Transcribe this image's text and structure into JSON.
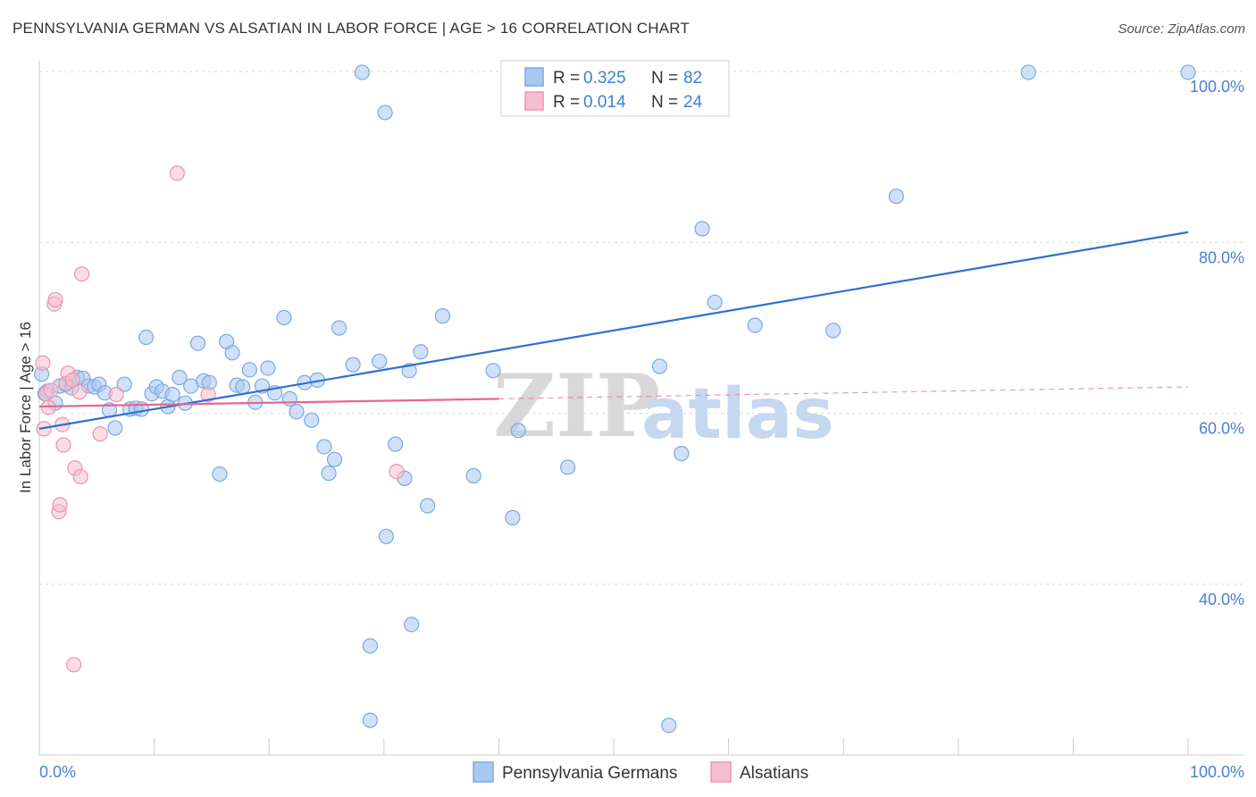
{
  "title": "PENNSYLVANIA GERMAN VS ALSATIAN IN LABOR FORCE | AGE > 16 CORRELATION CHART",
  "source": "Source: ZipAtlas.com",
  "watermark": {
    "zip": "ZIP",
    "atlas": "atlas"
  },
  "colors": {
    "blue_fill": "#a9c8f0",
    "blue_stroke": "#7aa8e2",
    "blue_line": "#2f6fd0",
    "pink_fill": "#f6bfd0",
    "pink_stroke": "#ec93b0",
    "pink_line": "#e8668f",
    "grid": "#d8d8d8",
    "tick_label": "#4a7fd4"
  },
  "legend": {
    "rows": [
      {
        "r_label": "R = ",
        "r_value": "0.325",
        "n_label": "N = ",
        "n_value": "82"
      },
      {
        "r_label": "R = ",
        "r_value": "0.014",
        "n_label": "N = ",
        "n_value": "24"
      }
    ]
  },
  "chart_data": {
    "type": "scatter",
    "title": "PENNSYLVANIA GERMAN VS ALSATIAN IN LABOR FORCE | AGE > 16 CORRELATION CHART",
    "xlabel": "",
    "ylabel": "In Labor Force | Age > 16",
    "xlim": [
      0,
      100
    ],
    "ylim": [
      23,
      103
    ],
    "x_tick_labels": [
      "0.0%",
      "100.0%"
    ],
    "y_ticks": [
      40,
      60,
      80,
      100
    ],
    "y_tick_labels": [
      "40.0%",
      "60.0%",
      "80.0%",
      "100.0%"
    ],
    "grid": true,
    "legend_position": "top-center",
    "series": [
      {
        "name": "Pennsylvania Germans",
        "color": "#a9c8f0",
        "trend": {
          "x": [
            0,
            100
          ],
          "y": [
            58.2,
            81.2
          ],
          "style": "solid"
        },
        "points": [
          [
            0.2,
            64.6
          ],
          [
            0.7,
            62.6
          ],
          [
            1.4,
            61.2
          ],
          [
            1.8,
            63.2
          ],
          [
            2.3,
            63.4
          ],
          [
            2.8,
            63.0
          ],
          [
            3.3,
            64.2
          ],
          [
            3.8,
            64.1
          ],
          [
            4.3,
            63.2
          ],
          [
            4.8,
            63.1
          ],
          [
            5.2,
            63.4
          ],
          [
            5.7,
            62.4
          ],
          [
            6.1,
            60.4
          ],
          [
            6.6,
            58.3
          ],
          [
            7.4,
            63.4
          ],
          [
            7.9,
            60.5
          ],
          [
            8.4,
            60.6
          ],
          [
            8.9,
            60.5
          ],
          [
            9.3,
            68.9
          ],
          [
            9.8,
            62.3
          ],
          [
            10.2,
            63.1
          ],
          [
            10.7,
            62.6
          ],
          [
            11.2,
            60.8
          ],
          [
            11.6,
            62.2
          ],
          [
            12.2,
            64.2
          ],
          [
            12.7,
            61.2
          ],
          [
            13.2,
            63.2
          ],
          [
            13.8,
            68.2
          ],
          [
            14.3,
            63.8
          ],
          [
            14.8,
            63.6
          ],
          [
            15.7,
            52.9
          ],
          [
            16.3,
            68.4
          ],
          [
            16.8,
            67.1
          ],
          [
            17.2,
            63.3
          ],
          [
            17.7,
            63.1
          ],
          [
            18.3,
            65.1
          ],
          [
            18.8,
            61.3
          ],
          [
            19.4,
            63.2
          ],
          [
            19.9,
            65.3
          ],
          [
            20.5,
            62.4
          ],
          [
            21.3,
            71.2
          ],
          [
            21.8,
            61.7
          ],
          [
            22.4,
            60.2
          ],
          [
            23.1,
            63.6
          ],
          [
            23.7,
            59.2
          ],
          [
            24.2,
            63.9
          ],
          [
            24.8,
            56.1
          ],
          [
            25.2,
            53.0
          ],
          [
            25.7,
            54.6
          ],
          [
            26.1,
            70.0
          ],
          [
            27.3,
            65.7
          ],
          [
            28.1,
            99.9
          ],
          [
            28.8,
            32.8
          ],
          [
            28.8,
            24.1
          ],
          [
            29.6,
            66.1
          ],
          [
            30.1,
            95.2
          ],
          [
            30.2,
            45.6
          ],
          [
            31.0,
            56.4
          ],
          [
            31.8,
            52.4
          ],
          [
            32.2,
            65.0
          ],
          [
            32.4,
            35.3
          ],
          [
            33.2,
            67.2
          ],
          [
            33.8,
            49.2
          ],
          [
            35.1,
            71.4
          ],
          [
            37.8,
            52.7
          ],
          [
            39.5,
            65.0
          ],
          [
            41.2,
            47.8
          ],
          [
            41.7,
            58.0
          ],
          [
            46.0,
            53.7
          ],
          [
            46.8,
            95.7
          ],
          [
            48.3,
            99.9
          ],
          [
            54.0,
            65.5
          ],
          [
            54.8,
            23.5
          ],
          [
            55.9,
            55.3
          ],
          [
            57.7,
            81.6
          ],
          [
            58.8,
            73.0
          ],
          [
            62.3,
            70.3
          ],
          [
            69.1,
            69.7
          ],
          [
            74.6,
            85.4
          ],
          [
            86.1,
            99.9
          ],
          [
            100.0,
            99.9
          ],
          [
            0.5,
            62.3
          ]
        ]
      },
      {
        "name": "Alsatians",
        "color": "#f6bfd0",
        "trend": {
          "x": [
            0,
            40
          ],
          "y": [
            60.8,
            61.7
          ],
          "style": "solid",
          "dashed_extension": {
            "x": [
              40,
              100
            ],
            "y": [
              61.7,
              63.1
            ]
          }
        },
        "points": [
          [
            0.3,
            65.9
          ],
          [
            0.4,
            58.2
          ],
          [
            0.6,
            62.3
          ],
          [
            0.8,
            60.7
          ],
          [
            1.0,
            62.7
          ],
          [
            1.3,
            72.8
          ],
          [
            1.4,
            73.3
          ],
          [
            1.7,
            48.5
          ],
          [
            1.8,
            49.3
          ],
          [
            2.0,
            58.7
          ],
          [
            2.1,
            56.3
          ],
          [
            2.3,
            63.5
          ],
          [
            2.5,
            64.7
          ],
          [
            2.9,
            63.9
          ],
          [
            3.0,
            30.6
          ],
          [
            3.1,
            53.6
          ],
          [
            3.5,
            62.5
          ],
          [
            3.6,
            52.6
          ],
          [
            3.7,
            76.3
          ],
          [
            5.3,
            57.6
          ],
          [
            6.7,
            62.2
          ],
          [
            12.0,
            88.1
          ],
          [
            14.7,
            62.2
          ],
          [
            31.1,
            53.2
          ]
        ]
      }
    ]
  }
}
